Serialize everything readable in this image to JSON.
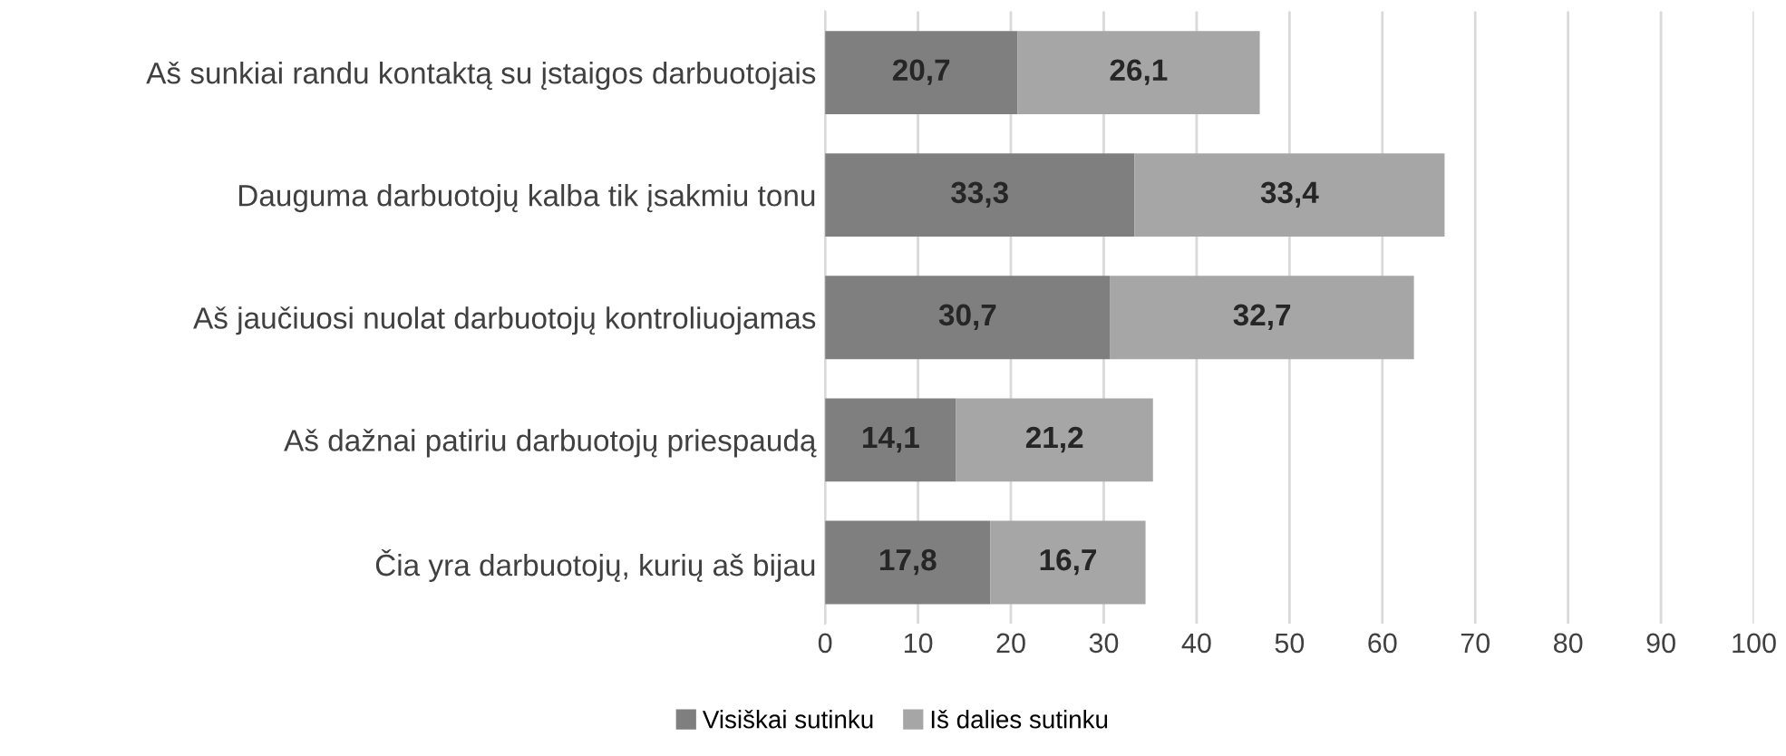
{
  "chart_data": {
    "type": "bar",
    "orientation": "horizontal",
    "stacked": true,
    "categories": [
      "Aš sunkiai randu kontaktą su įstaigos darbuotojais",
      "Dauguma darbuotojų kalba tik įsakmiu tonu",
      "Aš jaučiuosi nuolat darbuotojų kontroliuojamas",
      "Aš dažnai patiriu darbuotojų priespaudą",
      "Čia yra darbuotojų, kurių aš bijau"
    ],
    "series": [
      {
        "name": "Visiškai sutinku",
        "color": "#7f7f7f",
        "values": [
          20.7,
          33.3,
          30.7,
          14.1,
          17.8
        ],
        "value_labels": [
          "20,7",
          "33,3",
          "30,7",
          "14,1",
          "17,8"
        ]
      },
      {
        "name": "Iš dalies sutinku",
        "color": "#a6a6a6",
        "values": [
          26.1,
          33.4,
          32.7,
          21.2,
          16.7
        ],
        "value_labels": [
          "26,1",
          "33,4",
          "32,7",
          "21,2",
          "16,7"
        ]
      }
    ],
    "xlim": [
      0,
      100
    ],
    "xticks": [
      0,
      10,
      20,
      30,
      40,
      50,
      60,
      70,
      80,
      90,
      100
    ],
    "grid": "x",
    "legend": "bottom"
  }
}
